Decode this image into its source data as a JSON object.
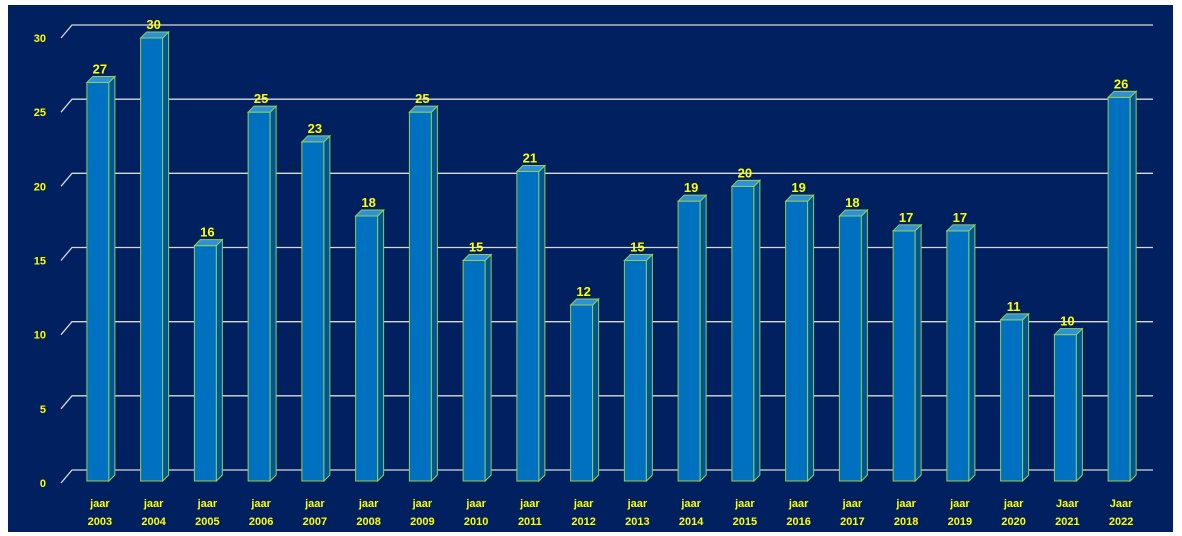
{
  "chart_data": {
    "type": "bar",
    "style": "3d-column",
    "categories": [
      [
        "jaar",
        "2003"
      ],
      [
        "jaar",
        "2004"
      ],
      [
        "jaar",
        "2005"
      ],
      [
        "jaar",
        "2006"
      ],
      [
        "jaar",
        "2007"
      ],
      [
        "jaar",
        "2008"
      ],
      [
        "jaar",
        "2009"
      ],
      [
        "jaar",
        "2010"
      ],
      [
        "jaar",
        "2011"
      ],
      [
        "jaar",
        "2012"
      ],
      [
        "jaar",
        "2013"
      ],
      [
        "jaar",
        "2014"
      ],
      [
        "jaar",
        "2015"
      ],
      [
        "jaar",
        "2016"
      ],
      [
        "jaar",
        "2017"
      ],
      [
        "jaar",
        "2018"
      ],
      [
        "jaar",
        "2019"
      ],
      [
        "jaar",
        "2020"
      ],
      [
        "Jaar",
        "2021"
      ],
      [
        "Jaar",
        "2022"
      ]
    ],
    "values": [
      27,
      30,
      16,
      25,
      23,
      18,
      25,
      15,
      21,
      12,
      15,
      19,
      20,
      19,
      18,
      17,
      17,
      11,
      10,
      26
    ],
    "data_labels": [
      "27",
      "30",
      "16",
      "25",
      "23",
      "18",
      "25",
      "15",
      "21",
      "12",
      "15",
      "19",
      "20",
      "19",
      "18",
      "17",
      "17",
      "11",
      "10",
      "26"
    ],
    "yticks": [
      0,
      5,
      10,
      15,
      20,
      25,
      30
    ],
    "ytick_labels": [
      "0",
      "5",
      "10",
      "15",
      "20",
      "25",
      "30"
    ],
    "ylim": [
      0,
      30
    ],
    "title": "",
    "xlabel": "",
    "ylabel": "",
    "grid": true,
    "legend": "none",
    "colors": {
      "background": "#002060",
      "bar_front": "#0070C0",
      "bar_side": "#005596",
      "bar_top": "#2F8FD8",
      "bar_edge": "#92D050",
      "gridline": "#D9D9D9",
      "text": "#FFFF00"
    }
  }
}
